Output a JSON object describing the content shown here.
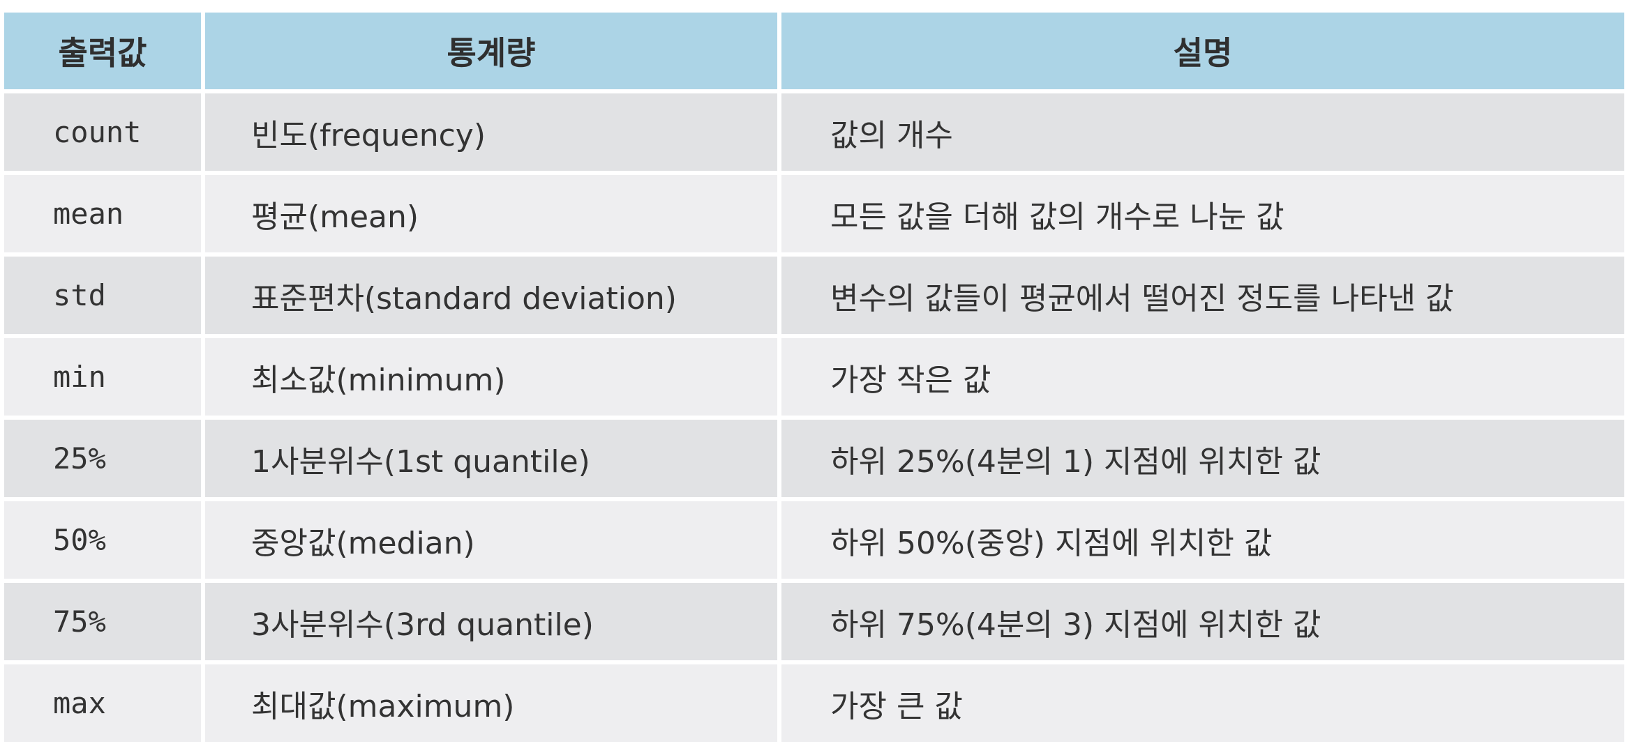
{
  "table": {
    "headers": [
      "출력값",
      "통계량",
      "설명"
    ],
    "rows": [
      [
        "count",
        "빈도(frequency)",
        "값의 개수"
      ],
      [
        "mean",
        "평균(mean)",
        "모든 값을 더해 값의 개수로 나눈 값"
      ],
      [
        "std",
        "표준편차(standard deviation)",
        "변수의 값들이 평균에서 떨어진 정도를 나타낸 값"
      ],
      [
        "min",
        "최소값(minimum)",
        "가장 작은 값"
      ],
      [
        "25%",
        "1사분위수(1st quantile)",
        "하위 25%(4분의 1) 지점에 위치한 값"
      ],
      [
        "50%",
        "중앙값(median)",
        "하위 50%(중앙) 지점에 위치한 값"
      ],
      [
        "75%",
        "3사분위수(3rd quantile)",
        "하위 75%(4분의 3) 지점에 위치한 값"
      ],
      [
        "max",
        "최대값(maximum)",
        "가장 큰 값"
      ]
    ]
  },
  "colors": {
    "header": "#acd4e6",
    "row_odd": "#e1e2e4",
    "row_even": "#eeeef0"
  }
}
